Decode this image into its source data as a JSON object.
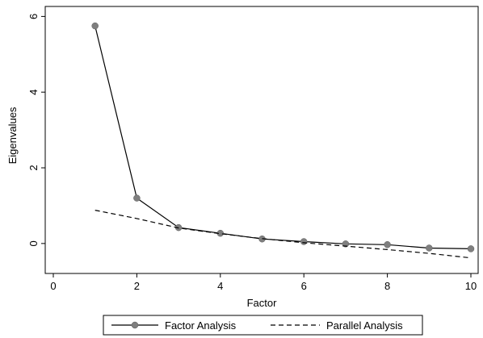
{
  "chart_data": {
    "type": "line",
    "xlabel": "Factor",
    "ylabel": "Eigenvalues",
    "xlim": [
      0,
      10
    ],
    "ylim": [
      -0.6,
      6.2
    ],
    "x_ticks": [
      0,
      2,
      4,
      6,
      8,
      10
    ],
    "y_ticks": [
      0,
      2,
      4,
      6
    ],
    "x_tick_labels": [
      "0",
      "2",
      "4",
      "6",
      "8",
      "10"
    ],
    "y_tick_labels": [
      "0",
      "2",
      "4",
      "6"
    ],
    "grid": false,
    "legend_position": "bottom",
    "series": [
      {
        "name": "Factor Analysis",
        "style": "solid-with-markers",
        "color": "#000000",
        "marker_color": "#7f7f7f",
        "x": [
          1,
          2,
          3,
          4,
          5,
          6,
          7,
          8,
          9,
          10
        ],
        "y": [
          5.75,
          1.2,
          0.42,
          0.27,
          0.12,
          0.05,
          -0.01,
          -0.03,
          -0.12,
          -0.14
        ]
      },
      {
        "name": "Parallel Analysis",
        "style": "dashed",
        "color": "#000000",
        "x": [
          1,
          2,
          3,
          4,
          5,
          6,
          7,
          8,
          9,
          10
        ],
        "y": [
          0.88,
          0.66,
          0.41,
          0.26,
          0.13,
          0.02,
          -0.07,
          -0.16,
          -0.26,
          -0.38
        ]
      }
    ]
  }
}
